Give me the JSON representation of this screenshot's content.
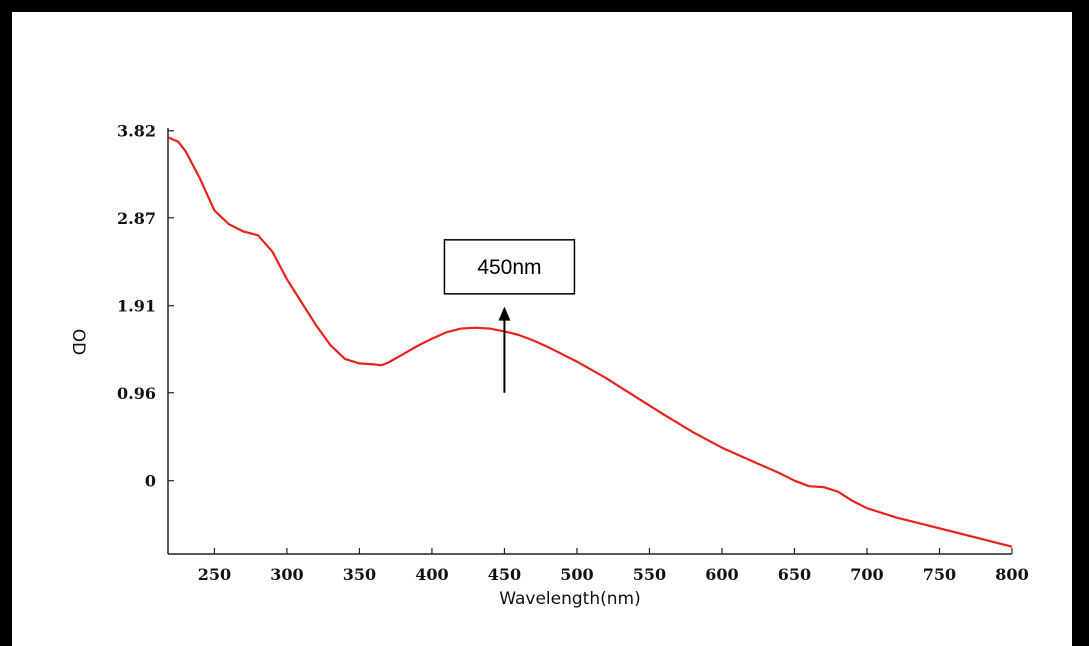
{
  "chart_data": {
    "type": "line",
    "xlabel": "Wavelength(nm)",
    "ylabel": "OD",
    "xlim": [
      218,
      800
    ],
    "ylim": [
      -0.8,
      3.85
    ],
    "xticks": [
      250,
      300,
      350,
      400,
      450,
      500,
      550,
      600,
      650,
      700,
      750,
      800
    ],
    "yticks": [
      3.82,
      2.87,
      1.91,
      0.96,
      0
    ],
    "ytick_labels": [
      "3.82",
      "2.87",
      "1.91",
      "0.96",
      "0"
    ],
    "grid": false,
    "series": [
      {
        "color": "#e8231c",
        "x": [
          218,
          225,
          230,
          240,
          250,
          260,
          270,
          280,
          290,
          300,
          310,
          320,
          330,
          340,
          350,
          360,
          365,
          370,
          380,
          390,
          400,
          410,
          420,
          430,
          440,
          450,
          460,
          470,
          480,
          490,
          500,
          520,
          540,
          560,
          580,
          600,
          620,
          640,
          650,
          660,
          670,
          680,
          690,
          700,
          720,
          740,
          760,
          780,
          800
        ],
        "y": [
          3.75,
          3.7,
          3.6,
          3.3,
          2.95,
          2.8,
          2.72,
          2.68,
          2.5,
          2.2,
          1.95,
          1.7,
          1.48,
          1.33,
          1.28,
          1.27,
          1.26,
          1.29,
          1.38,
          1.47,
          1.55,
          1.62,
          1.66,
          1.67,
          1.66,
          1.63,
          1.59,
          1.53,
          1.46,
          1.38,
          1.3,
          1.12,
          0.92,
          0.72,
          0.53,
          0.36,
          0.22,
          0.08,
          0.0,
          -0.06,
          -0.07,
          -0.12,
          -0.22,
          -0.3,
          -0.4,
          -0.48,
          -0.56,
          -0.64,
          -0.72
        ]
      }
    ],
    "annotations": [
      {
        "text": "450nm",
        "x": 450,
        "y": 2.28,
        "arrow_from_y": 0.96,
        "arrow_to_y": 1.9
      }
    ]
  }
}
